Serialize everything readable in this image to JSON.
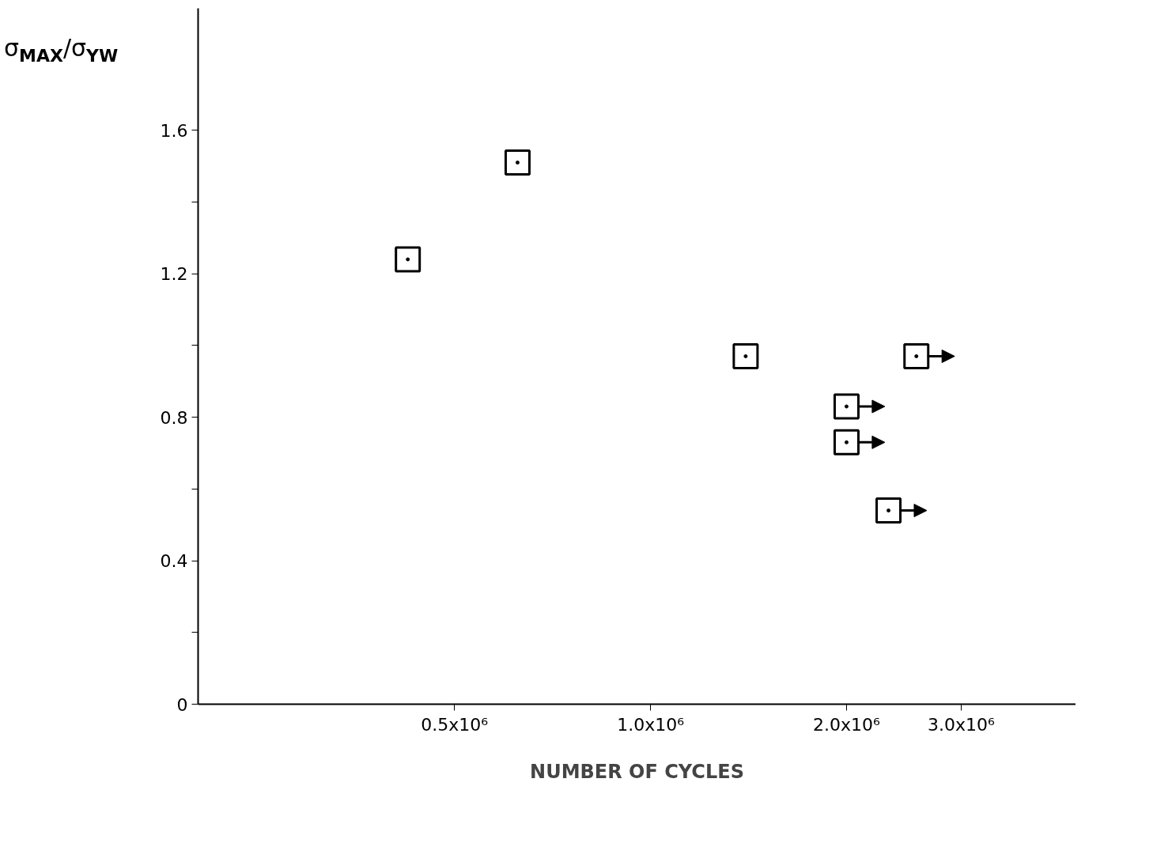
{
  "chart_data": {
    "type": "scatter",
    "xlabel": "NUMBER OF CYCLES",
    "ylabel": "σ$_{MAX}$/σ$_{YW}$",
    "log": "x",
    "marker": "square",
    "grid": false,
    "xlim": [
      202000,
      4500000
    ],
    "xticks": [
      {
        "value": 500000,
        "label": "0.5x10⁶"
      },
      {
        "value": 1000000,
        "label": "1.0x10⁶"
      },
      {
        "value": 2000000,
        "label": "2.0x10⁶"
      },
      {
        "value": 3000000,
        "label": "3.0x10⁶"
      }
    ],
    "ylim": [
      0,
      1.94
    ],
    "yticks": [
      0,
      {
        "value": 0.2,
        "label": null
      },
      0.4,
      {
        "value": 0.6,
        "label": null
      },
      0.8,
      {
        "value": 1.0,
        "label": null
      },
      1.2,
      {
        "value": 1.4,
        "label": null
      },
      1.6
    ],
    "series": [
      {
        "color": "#000000",
        "x": [
          424000,
          625000,
          1400000
        ],
        "values": [
          1.24,
          1.51,
          0.97
        ]
      },
      {
        "color": "#000000",
        "x": [
          2000000,
          2000000,
          2320000,
          2560000
        ],
        "values": [
          0.83,
          0.73,
          0.54,
          0.97
        ]
      }
    ]
  }
}
